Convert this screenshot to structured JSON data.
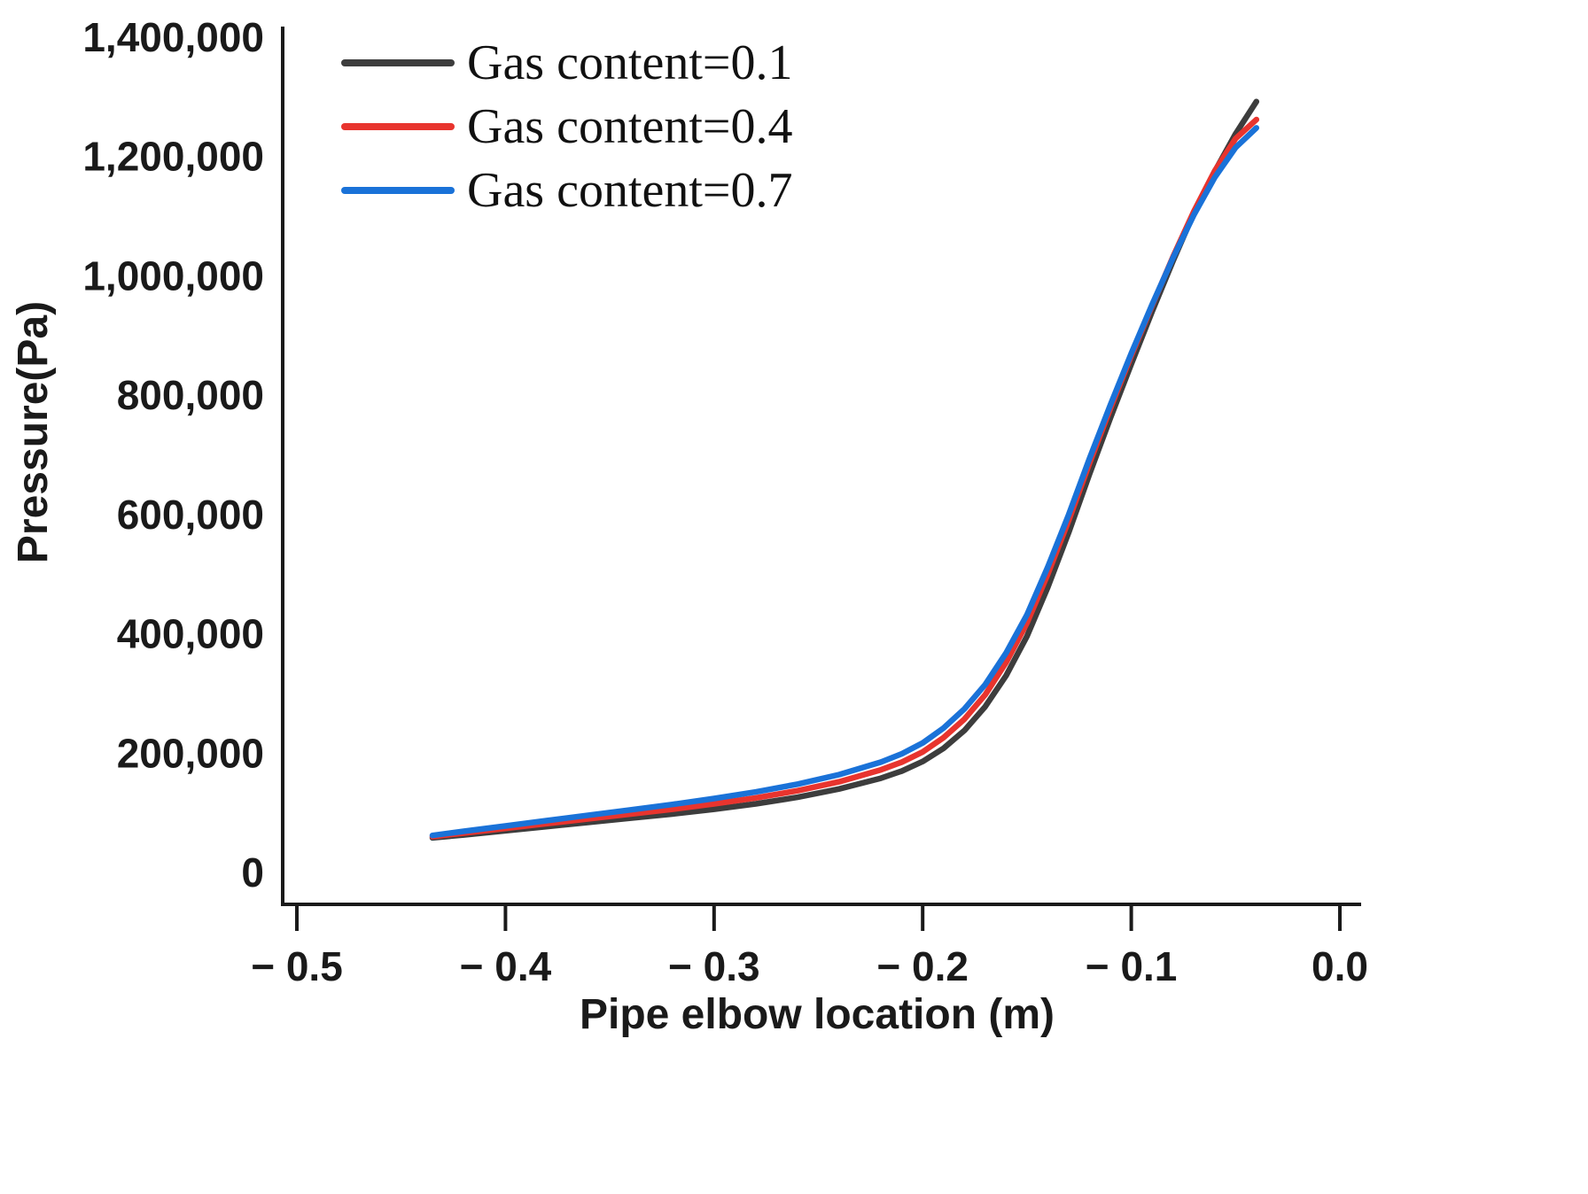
{
  "chart_data": {
    "type": "line",
    "title": "",
    "xlabel": "Pipe elbow location (m)",
    "ylabel": "Pressure(Pa)",
    "xlim": [
      -0.5,
      0.0
    ],
    "ylim": [
      0,
      1400000
    ],
    "grid": false,
    "legend_position": "upper-left",
    "axis_color": "#1a1a1a",
    "xticks": [
      -0.5,
      -0.4,
      -0.3,
      -0.2,
      -0.1,
      0.0
    ],
    "xtick_labels": [
      "− 0.5",
      "− 0.4",
      "− 0.3",
      "− 0.2",
      "− 0.1",
      "0.0"
    ],
    "yticks": [
      0,
      200000,
      400000,
      600000,
      800000,
      1000000,
      1200000,
      1400000
    ],
    "ytick_labels": [
      "0",
      "200,000",
      "400,000",
      "600,000",
      "800,000",
      "1,000,000",
      "1,200,000",
      "1,400,000"
    ],
    "x": [
      -0.435,
      -0.42,
      -0.4,
      -0.38,
      -0.36,
      -0.34,
      -0.32,
      -0.3,
      -0.28,
      -0.26,
      -0.24,
      -0.22,
      -0.21,
      -0.2,
      -0.19,
      -0.18,
      -0.17,
      -0.16,
      -0.15,
      -0.14,
      -0.13,
      -0.12,
      -0.11,
      -0.1,
      -0.09,
      -0.08,
      -0.07,
      -0.06,
      -0.05,
      -0.04
    ],
    "series": [
      {
        "name": "Gas content=0.1",
        "color": "#3d3d3d",
        "values": [
          58000,
          63000,
          70000,
          77000,
          84000,
          91000,
          98000,
          106000,
          115000,
          126000,
          140000,
          158000,
          170000,
          186000,
          208000,
          238000,
          278000,
          330000,
          396000,
          478000,
          570000,
          668000,
          762000,
          852000,
          940000,
          1025000,
          1105000,
          1175000,
          1238000,
          1292000
        ]
      },
      {
        "name": "Gas content=0.4",
        "color": "#e8342e",
        "values": [
          60000,
          66000,
          74000,
          82000,
          90000,
          98000,
          106000,
          115000,
          125000,
          137000,
          152000,
          172000,
          185000,
          202000,
          226000,
          257000,
          298000,
          352000,
          418000,
          500000,
          590000,
          686000,
          778000,
          866000,
          950000,
          1032000,
          1108000,
          1176000,
          1230000,
          1262000
        ]
      },
      {
        "name": "Gas content=0.7",
        "color": "#1a72d8",
        "values": [
          62000,
          69000,
          78000,
          87000,
          96000,
          105000,
          114000,
          124000,
          135000,
          148000,
          164000,
          185000,
          199000,
          217000,
          242000,
          274000,
          315000,
          368000,
          432000,
          512000,
          600000,
          694000,
          784000,
          870000,
          952000,
          1030000,
          1102000,
          1165000,
          1215000,
          1248000
        ]
      }
    ]
  }
}
